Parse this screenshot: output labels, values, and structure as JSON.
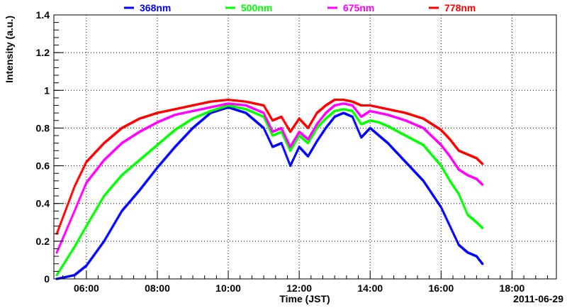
{
  "chart_data": {
    "type": "scatter",
    "title": "",
    "xlabel": "Time (JST)",
    "ylabel": "Intensity (a.u.)",
    "date_label": "2011-06-29",
    "xlim": [
      "05:05",
      "19:15"
    ],
    "ylim": [
      0,
      1.4
    ],
    "grid": true,
    "legend_placement": "top",
    "x_ticks": [
      "06:00",
      "08:00",
      "10:00",
      "12:00",
      "14:00",
      "16:00",
      "18:00"
    ],
    "y_ticks": [
      "0",
      "0.2",
      "0.4",
      "0.6",
      "0.8",
      "1",
      "1.2",
      "1.4"
    ],
    "x": [
      "05:10",
      "05:40",
      "06:00",
      "06:30",
      "07:00",
      "07:30",
      "08:00",
      "08:30",
      "09:00",
      "09:30",
      "10:00",
      "10:30",
      "11:00",
      "11:15",
      "11:30",
      "11:45",
      "12:00",
      "12:15",
      "12:30",
      "12:45",
      "13:00",
      "13:15",
      "13:30",
      "13:45",
      "14:00",
      "14:15",
      "14:30",
      "15:00",
      "15:30",
      "16:00",
      "16:15",
      "16:30",
      "16:45",
      "17:00",
      "17:10"
    ],
    "series": [
      {
        "name": "368nm",
        "color": "#0000ff",
        "values": [
          0.0,
          0.02,
          0.07,
          0.2,
          0.36,
          0.47,
          0.59,
          0.7,
          0.8,
          0.88,
          0.91,
          0.88,
          0.8,
          0.7,
          0.72,
          0.6,
          0.7,
          0.65,
          0.73,
          0.8,
          0.86,
          0.88,
          0.86,
          0.75,
          0.8,
          0.76,
          0.72,
          0.62,
          0.52,
          0.38,
          0.28,
          0.18,
          0.14,
          0.12,
          0.08
        ]
      },
      {
        "name": "500nm",
        "color": "#00ff00",
        "values": [
          0.02,
          0.17,
          0.28,
          0.44,
          0.55,
          0.63,
          0.71,
          0.79,
          0.85,
          0.89,
          0.92,
          0.9,
          0.86,
          0.76,
          0.78,
          0.68,
          0.76,
          0.72,
          0.8,
          0.85,
          0.89,
          0.9,
          0.89,
          0.82,
          0.84,
          0.83,
          0.81,
          0.76,
          0.71,
          0.6,
          0.52,
          0.45,
          0.34,
          0.3,
          0.27
        ]
      },
      {
        "name": "675nm",
        "color": "#ff00ff",
        "values": [
          0.14,
          0.36,
          0.51,
          0.63,
          0.72,
          0.78,
          0.83,
          0.87,
          0.89,
          0.91,
          0.93,
          0.92,
          0.88,
          0.78,
          0.8,
          0.7,
          0.78,
          0.74,
          0.82,
          0.88,
          0.92,
          0.93,
          0.92,
          0.86,
          0.89,
          0.88,
          0.87,
          0.84,
          0.8,
          0.71,
          0.65,
          0.58,
          0.55,
          0.53,
          0.5
        ]
      },
      {
        "name": "778nm",
        "color": "#ff0000",
        "values": [
          0.24,
          0.49,
          0.62,
          0.72,
          0.8,
          0.85,
          0.88,
          0.9,
          0.92,
          0.94,
          0.95,
          0.94,
          0.92,
          0.84,
          0.86,
          0.78,
          0.85,
          0.8,
          0.88,
          0.92,
          0.95,
          0.95,
          0.94,
          0.92,
          0.92,
          0.91,
          0.9,
          0.88,
          0.85,
          0.79,
          0.74,
          0.68,
          0.66,
          0.64,
          0.61
        ]
      }
    ]
  }
}
